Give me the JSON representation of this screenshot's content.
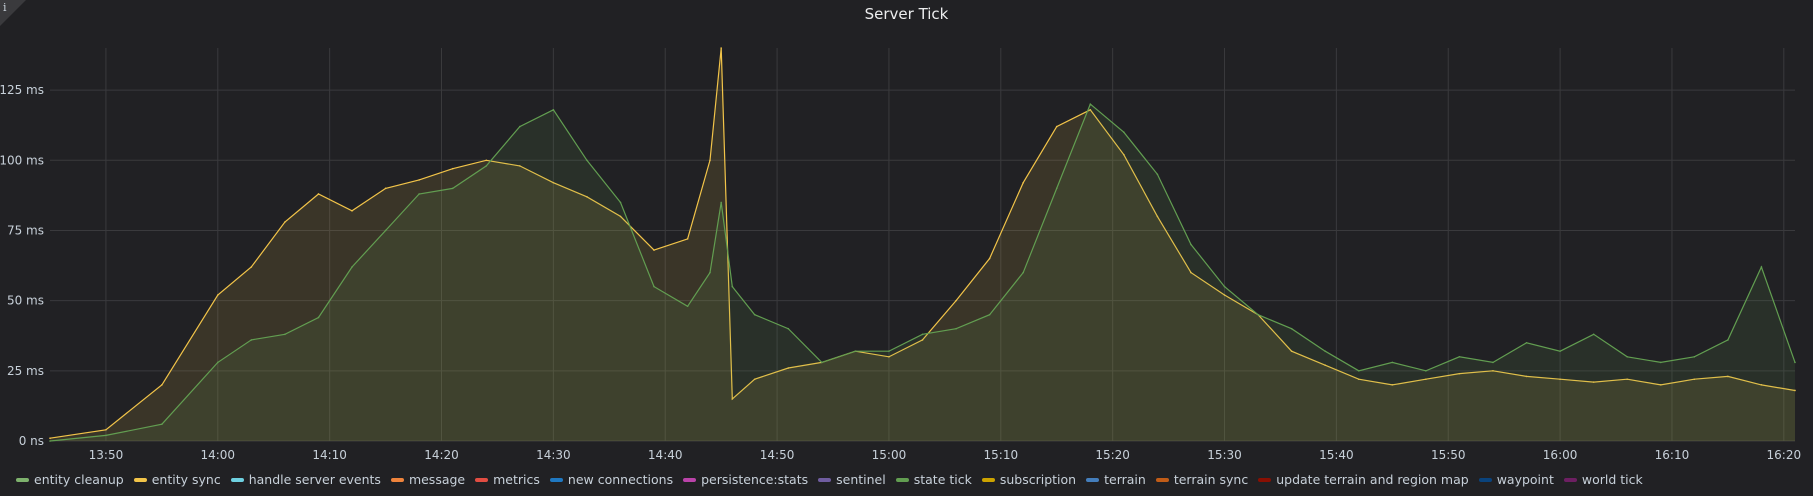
{
  "panel": {
    "title": "Server Tick",
    "info_icon": "info-icon"
  },
  "colors": {
    "background": "#212124",
    "grid": "#3a3a3d",
    "entity_sync": "#f2c449",
    "state_tick": "#629e51"
  },
  "chart_data": {
    "type": "area",
    "title": "Server Tick",
    "xlabel": "",
    "ylabel": "",
    "x_range": [
      "13:45",
      "16:21"
    ],
    "ylim": [
      0,
      140
    ],
    "y_unit": "ms",
    "grid": true,
    "legend_position": "bottom",
    "y_ticks": [
      "0 ns",
      "25 ms",
      "50 ms",
      "75 ms",
      "100 ms",
      "125 ms"
    ],
    "x_ticks": [
      "13:50",
      "14:00",
      "14:10",
      "14:20",
      "14:30",
      "14:40",
      "14:50",
      "15:00",
      "15:10",
      "15:20",
      "15:30",
      "15:40",
      "15:50",
      "16:00",
      "16:10",
      "16:20"
    ],
    "series": [
      {
        "name": "entity sync",
        "color": "#f2c449",
        "x": [
          "13:45",
          "13:50",
          "13:55",
          "14:00",
          "14:03",
          "14:06",
          "14:09",
          "14:12",
          "14:15",
          "14:18",
          "14:21",
          "14:24",
          "14:27",
          "14:30",
          "14:33",
          "14:36",
          "14:39",
          "14:42",
          "14:44",
          "14:45",
          "14:46",
          "14:48",
          "14:51",
          "14:54",
          "14:57",
          "15:00",
          "15:03",
          "15:06",
          "15:09",
          "15:12",
          "15:15",
          "15:18",
          "15:21",
          "15:24",
          "15:27",
          "15:30",
          "15:33",
          "15:36",
          "15:39",
          "15:42",
          "15:45",
          "15:48",
          "15:51",
          "15:54",
          "15:57",
          "16:00",
          "16:03",
          "16:06",
          "16:09",
          "16:12",
          "16:15",
          "16:18",
          "16:21"
        ],
        "values": [
          1,
          4,
          20,
          52,
          62,
          78,
          88,
          82,
          90,
          93,
          97,
          100,
          98,
          92,
          87,
          80,
          68,
          72,
          100,
          140,
          15,
          22,
          26,
          28,
          32,
          30,
          36,
          50,
          65,
          92,
          112,
          118,
          102,
          80,
          60,
          52,
          45,
          32,
          27,
          22,
          20,
          22,
          24,
          25,
          23,
          22,
          21,
          22,
          20,
          22,
          23,
          20,
          18
        ]
      },
      {
        "name": "state tick",
        "color": "#629e51",
        "x": [
          "13:45",
          "13:50",
          "13:55",
          "14:00",
          "14:03",
          "14:06",
          "14:09",
          "14:12",
          "14:15",
          "14:18",
          "14:21",
          "14:24",
          "14:27",
          "14:30",
          "14:33",
          "14:36",
          "14:39",
          "14:42",
          "14:44",
          "14:45",
          "14:46",
          "14:48",
          "14:51",
          "14:54",
          "14:57",
          "15:00",
          "15:03",
          "15:06",
          "15:09",
          "15:12",
          "15:15",
          "15:18",
          "15:21",
          "15:24",
          "15:27",
          "15:30",
          "15:33",
          "15:36",
          "15:39",
          "15:42",
          "15:45",
          "15:48",
          "15:51",
          "15:54",
          "15:57",
          "16:00",
          "16:03",
          "16:06",
          "16:09",
          "16:12",
          "16:15",
          "16:18",
          "16:21"
        ],
        "values": [
          0,
          2,
          6,
          28,
          36,
          38,
          44,
          62,
          75,
          88,
          90,
          98,
          112,
          118,
          100,
          85,
          55,
          48,
          60,
          85,
          55,
          45,
          40,
          28,
          32,
          32,
          38,
          40,
          45,
          60,
          90,
          120,
          110,
          95,
          70,
          55,
          45,
          40,
          32,
          25,
          28,
          25,
          30,
          28,
          35,
          32,
          38,
          30,
          28,
          30,
          36,
          62,
          28
        ]
      },
      {
        "name": "entity cleanup",
        "color": "#7eb26d",
        "values": []
      },
      {
        "name": "handle server events",
        "color": "#6ed0e0",
        "values": []
      },
      {
        "name": "message",
        "color": "#ef843c",
        "values": []
      },
      {
        "name": "metrics",
        "color": "#e24d42",
        "values": []
      },
      {
        "name": "new connections",
        "color": "#1f78c1",
        "values": []
      },
      {
        "name": "persistence:stats",
        "color": "#ba43a9",
        "values": []
      },
      {
        "name": "sentinel",
        "color": "#705da0",
        "values": []
      },
      {
        "name": "subscription",
        "color": "#cca300",
        "values": []
      },
      {
        "name": "terrain",
        "color": "#447ebc",
        "values": []
      },
      {
        "name": "terrain sync",
        "color": "#c15c17",
        "values": []
      },
      {
        "name": "update terrain and region map",
        "color": "#890f02",
        "values": []
      },
      {
        "name": "waypoint",
        "color": "#0a437c",
        "values": []
      },
      {
        "name": "world tick",
        "color": "#6d1f62",
        "values": []
      }
    ]
  },
  "legend": [
    {
      "label": "entity cleanup",
      "color": "#7eb26d"
    },
    {
      "label": "entity sync",
      "color": "#f2c449"
    },
    {
      "label": "handle server events",
      "color": "#6ed0e0"
    },
    {
      "label": "message",
      "color": "#ef843c"
    },
    {
      "label": "metrics",
      "color": "#e24d42"
    },
    {
      "label": "new connections",
      "color": "#1f78c1"
    },
    {
      "label": "persistence:stats",
      "color": "#ba43a9"
    },
    {
      "label": "sentinel",
      "color": "#705da0"
    },
    {
      "label": "state tick",
      "color": "#629e51"
    },
    {
      "label": "subscription",
      "color": "#cca300"
    },
    {
      "label": "terrain",
      "color": "#447ebc"
    },
    {
      "label": "terrain sync",
      "color": "#c15c17"
    },
    {
      "label": "update terrain and region map",
      "color": "#890f02"
    },
    {
      "label": "waypoint",
      "color": "#0a437c"
    },
    {
      "label": "world tick",
      "color": "#6d1f62"
    }
  ]
}
